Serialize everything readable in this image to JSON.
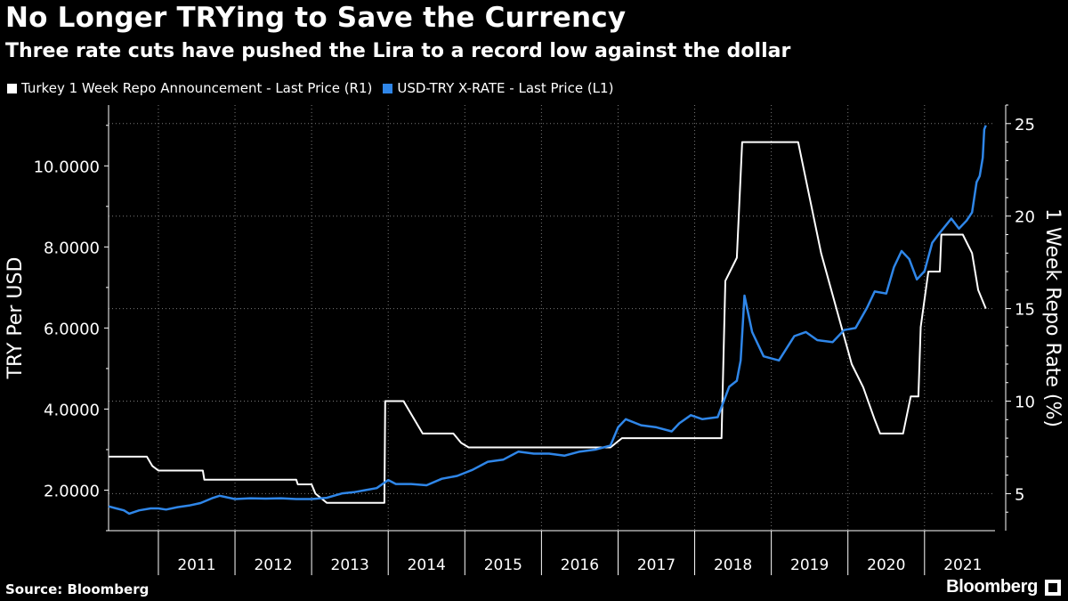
{
  "header": {
    "title": "No Longer TRYing to Save the Currency",
    "subtitle": "Three rate cuts have pushed the Lira to a record low against the dollar"
  },
  "footer": {
    "source": "Source: Bloomberg",
    "brand": "Bloomberg"
  },
  "colors": {
    "background": "#000000",
    "repo_line": "#ffffff",
    "fx_line": "#2f86e8",
    "grid": "#7a7a7a"
  },
  "chart_data": {
    "type": "line",
    "title": "No Longer TRYing to Save the Currency",
    "subtitle": "Three rate cuts have pushed the Lira to a record low against the dollar",
    "legend_position": "top-left",
    "grid": true,
    "x_ticks": [
      "2011",
      "2012",
      "2013",
      "2014",
      "2015",
      "2016",
      "2017",
      "2018",
      "2019",
      "2020",
      "2021"
    ],
    "x_range": [
      2010.35,
      2021.92
    ],
    "left_axis": {
      "label": "TRY Per USD",
      "range": [
        1.0,
        11.5
      ],
      "ticks": [
        2.0,
        4.0,
        6.0,
        8.0,
        10.0
      ],
      "tick_labels": [
        "2.0000",
        "4.0000",
        "6.0000",
        "8.0000",
        "10.0000"
      ]
    },
    "right_axis": {
      "label": "1 Week Repo Rate (%)",
      "range": [
        3,
        26
      ],
      "ticks": [
        5,
        10,
        15,
        20,
        25
      ],
      "tick_labels": [
        "5",
        "10",
        "15",
        "20",
        "25"
      ]
    },
    "series": [
      {
        "name": "Turkey 1 Week Repo Announcement - Last Price (R1)",
        "axis": "right",
        "x": [
          2010.35,
          2010.85,
          2010.92,
          2011.0,
          2011.58,
          2011.6,
          2012.8,
          2012.82,
          2013.0,
          2013.05,
          2013.2,
          2013.5,
          2013.95,
          2013.96,
          2014.2,
          2014.45,
          2014.85,
          2014.95,
          2015.05,
          2016.9,
          2017.05,
          2018.07,
          2018.35,
          2018.4,
          2018.55,
          2018.62,
          2019.35,
          2019.5,
          2019.65,
          2019.85,
          2020.05,
          2020.2,
          2020.35,
          2020.42,
          2020.72,
          2020.82,
          2020.92,
          2020.95,
          2021.05,
          2021.2,
          2021.22,
          2021.5,
          2021.62,
          2021.7,
          2021.8
        ],
        "y": [
          7.0,
          7.0,
          6.5,
          6.25,
          6.25,
          5.75,
          5.75,
          5.5,
          5.5,
          5.0,
          4.5,
          4.5,
          4.5,
          10.0,
          10.0,
          8.25,
          8.25,
          7.75,
          7.5,
          7.5,
          8.0,
          8.0,
          8.0,
          16.5,
          17.75,
          24.0,
          24.0,
          21.0,
          18.0,
          15.0,
          12.0,
          10.75,
          9.0,
          8.25,
          8.25,
          10.25,
          10.25,
          14.0,
          17.0,
          17.0,
          19.0,
          19.0,
          18.0,
          16.0,
          15.0
        ]
      },
      {
        "name": "USD-TRY X-RATE - Last Price (L1)",
        "axis": "left",
        "x": [
          2010.35,
          2010.45,
          2010.55,
          2010.62,
          2010.75,
          2010.9,
          2011.0,
          2011.1,
          2011.25,
          2011.4,
          2011.55,
          2011.7,
          2011.8,
          2012.0,
          2012.2,
          2012.4,
          2012.6,
          2012.8,
          2013.0,
          2013.2,
          2013.4,
          2013.55,
          2013.7,
          2013.85,
          2014.0,
          2014.1,
          2014.3,
          2014.5,
          2014.7,
          2014.9,
          2015.1,
          2015.3,
          2015.5,
          2015.7,
          2015.9,
          2016.1,
          2016.3,
          2016.5,
          2016.7,
          2016.9,
          2017.0,
          2017.1,
          2017.3,
          2017.5,
          2017.7,
          2017.8,
          2017.95,
          2018.1,
          2018.3,
          2018.45,
          2018.55,
          2018.6,
          2018.65,
          2018.75,
          2018.9,
          2019.1,
          2019.3,
          2019.45,
          2019.6,
          2019.8,
          2019.95,
          2020.1,
          2020.25,
          2020.35,
          2020.5,
          2020.6,
          2020.7,
          2020.8,
          2020.9,
          2021.0,
          2021.1,
          2021.2,
          2021.35,
          2021.45,
          2021.55,
          2021.62,
          2021.68,
          2021.72,
          2021.76,
          2021.78,
          2021.8
        ],
        "y": [
          1.6,
          1.55,
          1.5,
          1.42,
          1.5,
          1.55,
          1.55,
          1.52,
          1.58,
          1.62,
          1.68,
          1.8,
          1.86,
          1.78,
          1.8,
          1.79,
          1.8,
          1.78,
          1.78,
          1.81,
          1.92,
          1.95,
          2.0,
          2.05,
          2.25,
          2.15,
          2.15,
          2.12,
          2.28,
          2.35,
          2.5,
          2.7,
          2.75,
          2.95,
          2.9,
          2.9,
          2.85,
          2.95,
          3.0,
          3.1,
          3.55,
          3.75,
          3.6,
          3.55,
          3.45,
          3.65,
          3.85,
          3.75,
          3.8,
          4.55,
          4.7,
          5.2,
          6.8,
          5.9,
          5.3,
          5.2,
          5.8,
          5.9,
          5.7,
          5.65,
          5.95,
          6.0,
          6.5,
          6.9,
          6.85,
          7.5,
          7.9,
          7.7,
          7.2,
          7.4,
          8.1,
          8.35,
          8.7,
          8.45,
          8.65,
          8.85,
          9.6,
          9.75,
          10.2,
          10.9,
          11.0
        ]
      }
    ]
  }
}
